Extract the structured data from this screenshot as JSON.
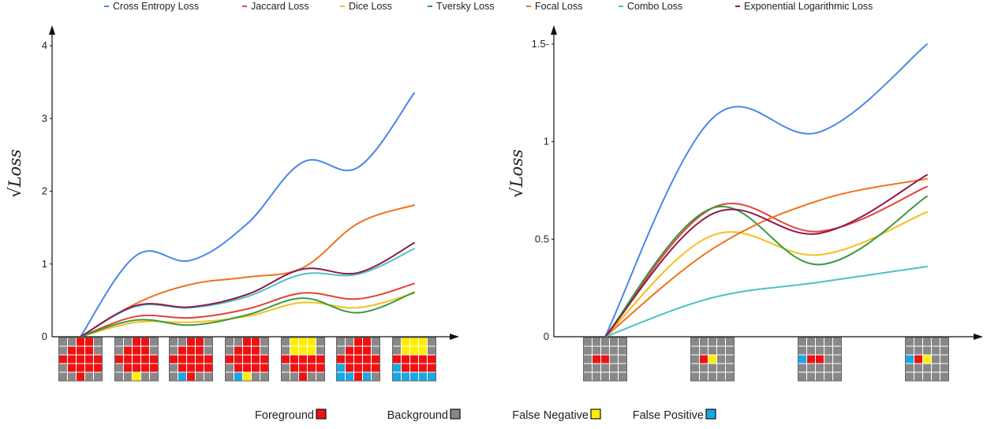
{
  "colors": {
    "cross_entropy": "#4a86e8",
    "jaccard": "#e0443a",
    "dice": "#f5bf1b",
    "tversky": "#3a9a44",
    "focal": "#f0721c",
    "combo": "#4fc0c4",
    "exp_log": "#8e1a4c",
    "foreground": "#ee1111",
    "background": "#888888",
    "false_negative": "#ffee00",
    "false_positive": "#19a7e6"
  },
  "legend": [
    {
      "name": "Cross Entropy Loss",
      "color_key": "cross_entropy"
    },
    {
      "name": "Jaccard Loss",
      "color_key": "jaccard"
    },
    {
      "name": "Dice Loss",
      "color_key": "dice"
    },
    {
      "name": "Tversky Loss",
      "color_key": "tversky"
    },
    {
      "name": "Focal Loss",
      "color_key": "focal"
    },
    {
      "name": "Combo Loss",
      "color_key": "combo"
    },
    {
      "name": "Exponential Logarithmic Loss",
      "color_key": "exp_log"
    }
  ],
  "bottom_legend": [
    {
      "label": "Foreground",
      "color_key": "foreground"
    },
    {
      "label": "Background",
      "color_key": "background"
    },
    {
      "label": "False Negative",
      "color_key": "false_negative"
    },
    {
      "label": "False Positive",
      "color_key": "false_positive"
    }
  ],
  "chart_data": [
    {
      "type": "line",
      "ylabel": "√Loss",
      "x": [
        0,
        1,
        2,
        3,
        4,
        5,
        6
      ],
      "yticks": [
        0,
        1,
        2,
        3,
        4
      ],
      "ylim": [
        0,
        4.2
      ],
      "series": [
        {
          "name": "Cross Entropy Loss",
          "color_key": "cross_entropy",
          "values": [
            0,
            1.12,
            1.05,
            1.55,
            2.4,
            2.33,
            3.35
          ]
        },
        {
          "name": "Jaccard Loss",
          "color_key": "jaccard",
          "values": [
            0,
            0.28,
            0.26,
            0.38,
            0.6,
            0.52,
            0.73
          ]
        },
        {
          "name": "Dice Loss",
          "color_key": "dice",
          "values": [
            0,
            0.2,
            0.2,
            0.28,
            0.47,
            0.4,
            0.6
          ]
        },
        {
          "name": "Tversky Loss",
          "color_key": "tversky",
          "values": [
            0,
            0.23,
            0.16,
            0.3,
            0.53,
            0.33,
            0.61
          ]
        },
        {
          "name": "Focal Loss",
          "color_key": "focal",
          "values": [
            0,
            0.46,
            0.72,
            0.82,
            0.95,
            1.56,
            1.81
          ]
        },
        {
          "name": "Combo Loss",
          "color_key": "combo",
          "values": [
            0,
            0.42,
            0.4,
            0.55,
            0.86,
            0.86,
            1.21
          ]
        },
        {
          "name": "Exponential Logarithmic Loss",
          "color_key": "exp_log",
          "values": [
            0,
            0.43,
            0.41,
            0.58,
            0.93,
            0.88,
            1.29
          ]
        }
      ],
      "thumbnails": [
        [
          "GGRRG",
          "GRRRG",
          "RRRRR",
          "GRRRR",
          "GGRGG"
        ],
        [
          "GGRRG",
          "GRRRG",
          "RRRRR",
          "GRRRR",
          "GGYGG"
        ],
        [
          "GGRRG",
          "GRRRG",
          "RRRRR",
          "GRRRR",
          "GBRGG"
        ],
        [
          "GGRRG",
          "GRRRG",
          "RRRRR",
          "GRRRR",
          "GBYGG"
        ],
        [
          "GYYYG",
          "GYYYG",
          "RRRRR",
          "GRRRR",
          "GGRGG"
        ],
        [
          "GGRRG",
          "GRRRG",
          "RRRRR",
          "BRRRR",
          "BBRBG"
        ],
        [
          "GYYYG",
          "GYYYG",
          "RRRRR",
          "BRRRR",
          "BBBBB"
        ]
      ]
    },
    {
      "type": "line",
      "ylabel": "√Loss",
      "x": [
        0,
        1,
        2,
        3
      ],
      "yticks": [
        0,
        0.5,
        1,
        1.5
      ],
      "yticklabels": [
        "0",
        "0.5",
        "1",
        "1.5-"
      ],
      "ylim": [
        0,
        1.6
      ],
      "series": [
        {
          "name": "Cross Entropy Loss",
          "color_key": "cross_entropy",
          "values": [
            0,
            1.12,
            1.05,
            1.5
          ]
        },
        {
          "name": "Jaccard Loss",
          "color_key": "jaccard",
          "values": [
            0,
            0.66,
            0.54,
            0.77
          ]
        },
        {
          "name": "Dice Loss",
          "color_key": "dice",
          "values": [
            0,
            0.52,
            0.42,
            0.64
          ]
        },
        {
          "name": "Tversky Loss",
          "color_key": "tversky",
          "values": [
            0,
            0.66,
            0.37,
            0.72
          ]
        },
        {
          "name": "Focal Loss",
          "color_key": "focal",
          "values": [
            0,
            0.45,
            0.7,
            0.81
          ]
        },
        {
          "name": "Combo Loss",
          "color_key": "combo",
          "values": [
            0,
            0.2,
            0.28,
            0.36
          ]
        },
        {
          "name": "Exponential Logarithmic Loss",
          "color_key": "exp_log",
          "values": [
            0,
            0.63,
            0.53,
            0.83
          ]
        }
      ],
      "thumbnails": [
        [
          "GGGGG",
          "GGGGG",
          "GRRGG",
          "GGGGG",
          "GGGGG"
        ],
        [
          "GGGGG",
          "GGGGG",
          "GRYGG",
          "GGGGG",
          "GGGGG"
        ],
        [
          "GGGGG",
          "GGGGG",
          "BRRGG",
          "GGGGG",
          "GGGGG"
        ],
        [
          "GGGGG",
          "GGGGG",
          "BRYGG",
          "GGGGG",
          "GGGGG"
        ]
      ]
    }
  ]
}
